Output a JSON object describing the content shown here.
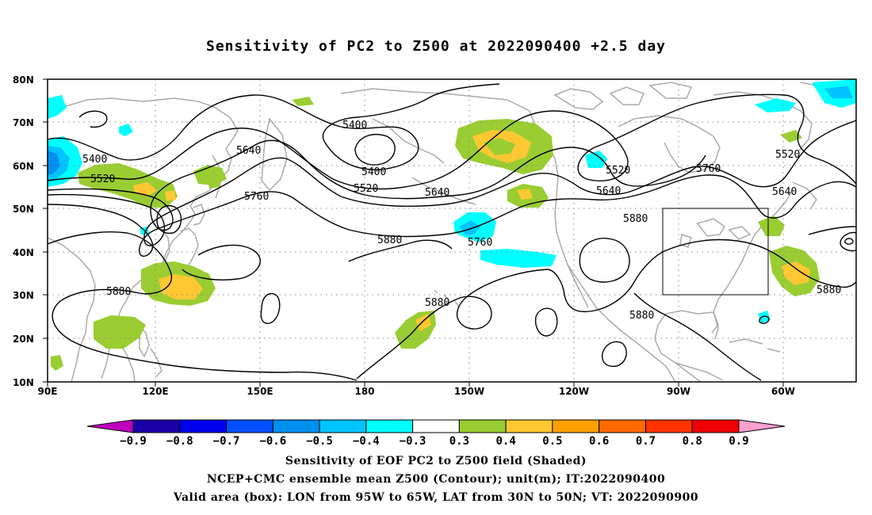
{
  "title": "Sensitivity of PC2 to Z500 at 2022090400 +2.5 day",
  "lat_labels": [
    "80N",
    "70N",
    "60N",
    "50N",
    "40N",
    "30N",
    "20N",
    "10N"
  ],
  "lon_labels": [
    "90E",
    "120E",
    "150E",
    "180",
    "150W",
    "120W",
    "90W",
    "60W"
  ],
  "contour_labels": [
    "5400",
    "5400",
    "5400",
    "5520",
    "5520",
    "5520",
    "5520",
    "5640",
    "5640",
    "5640",
    "5640",
    "5760",
    "5760",
    "5760",
    "5880",
    "5880",
    "5880",
    "5880",
    "5880",
    "5880"
  ],
  "colorbar": {
    "colors": [
      "#c000c0",
      "#1c00a8",
      "#0000f0",
      "#0050ff",
      "#0090f0",
      "#00c4ff",
      "#00ffff",
      "#ffffff",
      "#9acd32",
      "#ffc832",
      "#ffa000",
      "#ff6a00",
      "#ff3200",
      "#f00000",
      "#ffa0d2"
    ],
    "labels": [
      "−0.9",
      "−0.8",
      "−0.7",
      "−0.6",
      "−0.5",
      "−0.4",
      "−0.3",
      "0.3",
      "0.4",
      "0.5",
      "0.6",
      "0.7",
      "0.8",
      "0.9"
    ]
  },
  "shading_colors": {
    "cyan": "#00ffff",
    "light_blue": "#00c4ff",
    "mid_blue": "#0090f0",
    "green": "#9acd32",
    "yellow": "#ffc832"
  },
  "valid_area": {
    "lon_from": "95W",
    "lon_to": "65W",
    "lat_from": "30N",
    "lat_to": "50N"
  },
  "caption": {
    "line1": "Sensitivity of EOF PC2 to Z500 field (Shaded)",
    "line2": "NCEP+CMC ensemble mean Z500 (Contour); unit(m); IT:2022090400",
    "line3": "Valid area (box): LON from 95W to 65W, LAT from 30N to 50N; VT: 2022090900"
  }
}
